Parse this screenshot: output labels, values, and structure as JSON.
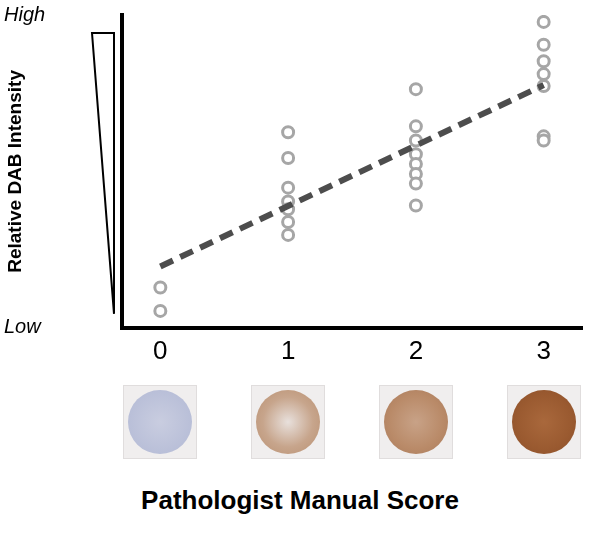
{
  "chart_data": {
    "type": "scatter",
    "x_label": "Pathologist Manual Score",
    "y_label": "Relative DAB Intensity",
    "xlim": [
      -0.3,
      3.3
    ],
    "xticks": [
      0,
      1,
      2,
      3
    ],
    "ylim": [
      0,
      10
    ],
    "yticks": [
      {
        "value": 0,
        "label": "Low"
      },
      {
        "value": 10,
        "label": "High"
      }
    ],
    "grid": false,
    "series": [
      {
        "color": "#a6a6a6",
        "marker": "circle",
        "x": [
          0,
          0,
          1,
          1,
          1,
          1,
          1,
          1,
          1,
          2,
          2,
          2,
          2,
          2,
          2,
          2,
          2,
          3,
          3,
          3,
          3,
          3,
          3,
          3
        ],
        "values": [
          1.29,
          0.54,
          6.25,
          5.43,
          4.48,
          4.04,
          3.79,
          3.38,
          2.97,
          7.63,
          6.44,
          5.99,
          5.55,
          5.24,
          4.92,
          4.61,
          3.91,
          9.78,
          9.05,
          8.52,
          8.11,
          7.73,
          6.12,
          5.99
        ]
      },
      {
        "type": "line",
        "line_style": "dashed",
        "marker": "none",
        "color": "#4d4d4d",
        "x": [
          0,
          3
        ],
        "values": [
          1.96,
          7.76
        ]
      }
    ]
  }
}
